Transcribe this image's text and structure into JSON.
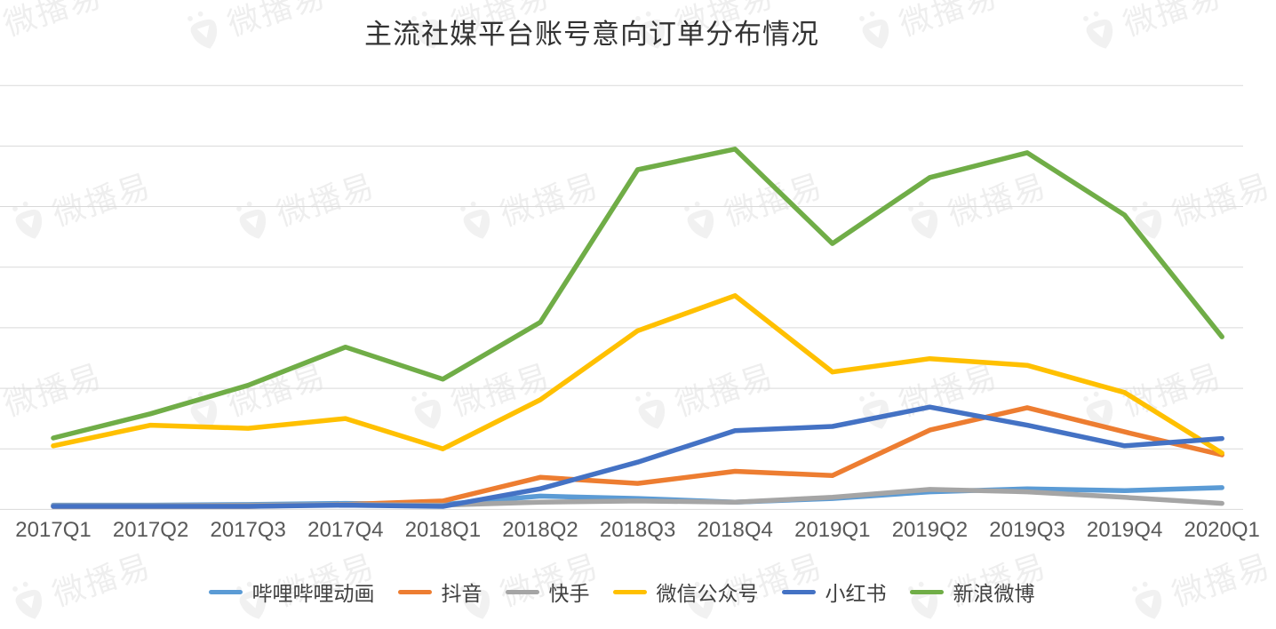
{
  "title": "主流社媒平台账号意向订单分布情况",
  "watermark": {
    "brand": "微播易"
  },
  "colors": {
    "grid": "#D9D9D9",
    "axis_text": "#595959",
    "legend_text": "#404040",
    "title_text": "#333333"
  },
  "chart_data": {
    "type": "line",
    "title": "主流社媒平台账号意向订单分布情况",
    "xlabel": "",
    "ylabel": "",
    "grid": true,
    "legend_position": "bottom",
    "y_axis_labels_visible": false,
    "ylim": [
      0,
      7
    ],
    "y_unit": "gridline-intervals (y-axis labels cropped off-screen)",
    "categories": [
      "2017Q1",
      "2017Q2",
      "2017Q3",
      "2017Q4",
      "2018Q1",
      "2018Q2",
      "2018Q3",
      "2018Q4",
      "2019Q1",
      "2019Q2",
      "2019Q3",
      "2019Q4",
      "2020Q1"
    ],
    "series": [
      {
        "name": "哔哩哔哩动画",
        "color": "#5B9BD5",
        "values": [
          0.07,
          0.07,
          0.08,
          0.1,
          0.08,
          0.22,
          0.18,
          0.12,
          0.18,
          0.29,
          0.34,
          0.31,
          0.36
        ]
      },
      {
        "name": "抖音",
        "color": "#ED7D31",
        "values": [
          0.05,
          0.05,
          0.05,
          0.08,
          0.14,
          0.53,
          0.43,
          0.63,
          0.56,
          1.31,
          1.68,
          1.28,
          0.9
        ]
      },
      {
        "name": "快手",
        "color": "#A5A5A5",
        "values": [
          0.06,
          0.06,
          0.07,
          0.08,
          0.07,
          0.12,
          0.14,
          0.12,
          0.2,
          0.33,
          0.29,
          0.2,
          0.1
        ]
      },
      {
        "name": "微信公众号",
        "color": "#FFC000",
        "values": [
          1.05,
          1.39,
          1.34,
          1.5,
          1.0,
          1.81,
          2.95,
          3.53,
          2.27,
          2.49,
          2.38,
          1.93,
          0.93
        ]
      },
      {
        "name": "小红书",
        "color": "#4472C4",
        "values": [
          0.05,
          0.05,
          0.05,
          0.07,
          0.05,
          0.34,
          0.78,
          1.3,
          1.37,
          1.69,
          1.39,
          1.05,
          1.17
        ]
      },
      {
        "name": "新浪微博",
        "color": "#70AD47",
        "values": [
          1.18,
          1.58,
          2.05,
          2.68,
          2.15,
          3.09,
          5.61,
          5.95,
          4.39,
          5.48,
          5.89,
          4.86,
          2.85
        ]
      }
    ]
  }
}
